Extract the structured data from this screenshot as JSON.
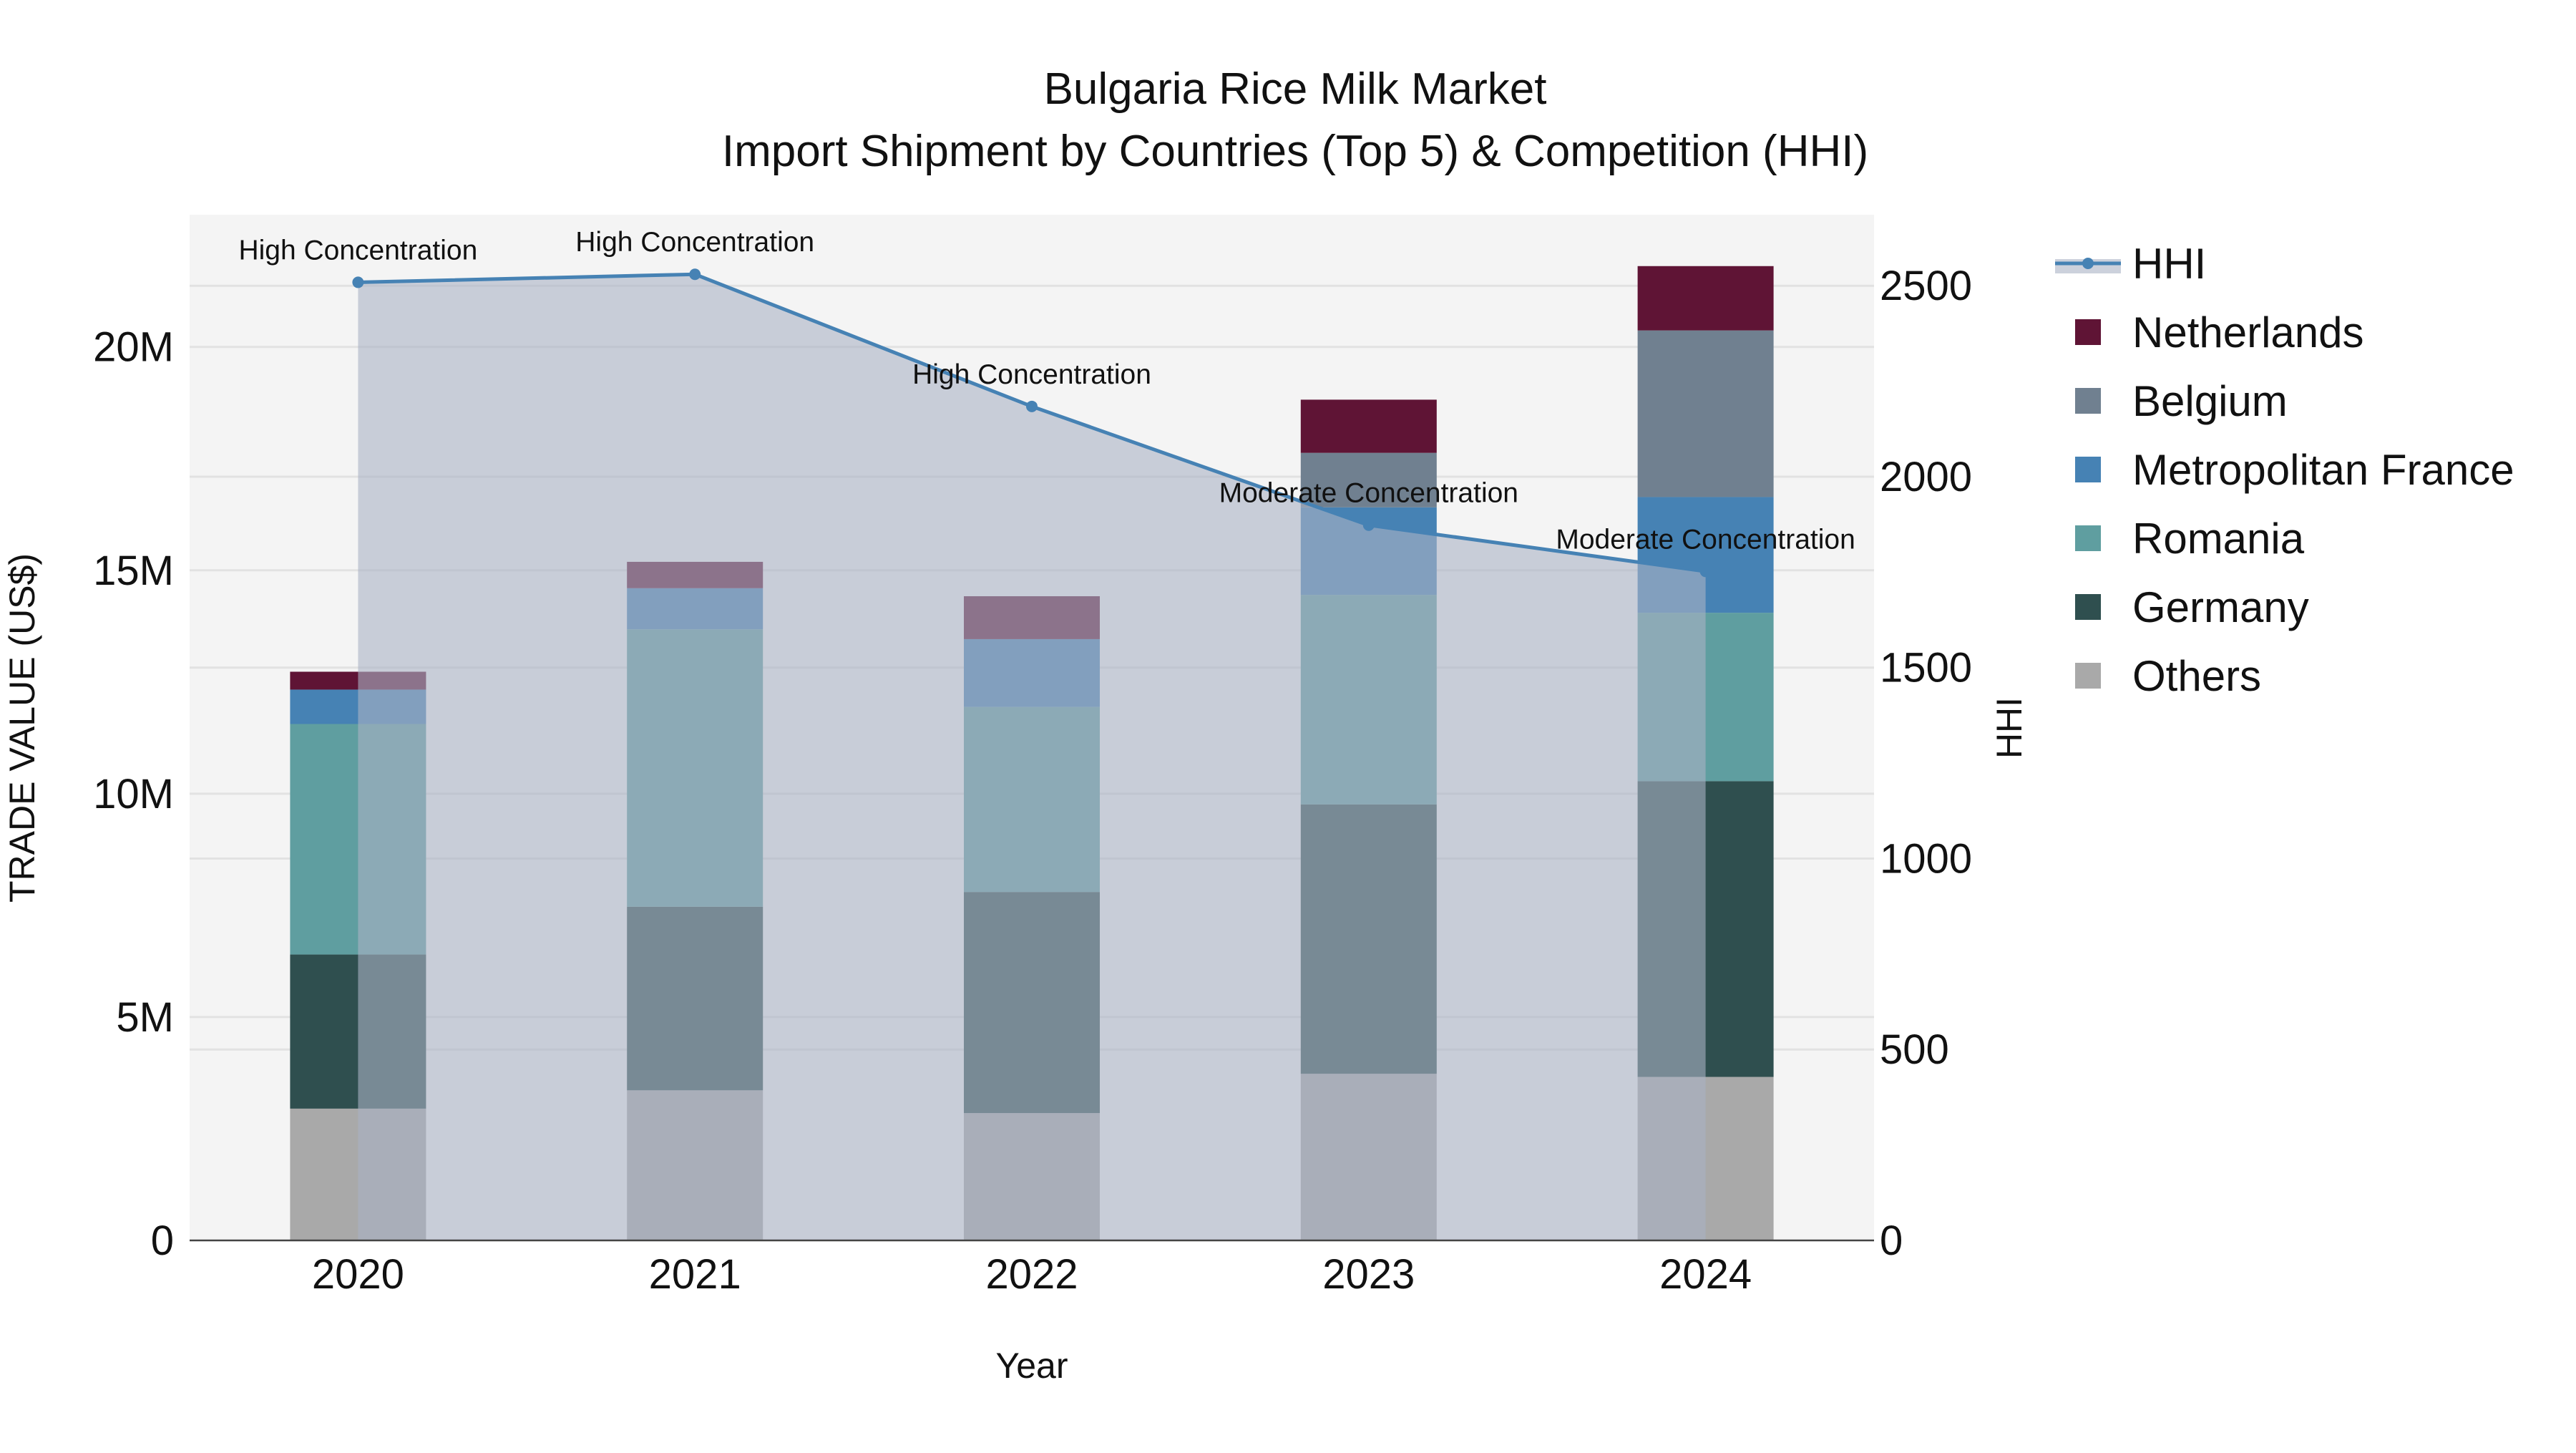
{
  "chart_data": {
    "type": "bar",
    "title": "Bulgaria Rice Milk Market",
    "subtitle": "Import Shipment by Countries (Top 5) & Competition (HHI)",
    "xlabel": "Year",
    "ylabel": "TRADE VALUE (US$)",
    "y2label": "HHI",
    "categories": [
      "2020",
      "2021",
      "2022",
      "2023",
      "2024"
    ],
    "ylim": [
      0,
      22960000
    ],
    "y2lim": [
      0,
      2686
    ],
    "yticks": [
      {
        "v": 0,
        "label": "0"
      },
      {
        "v": 5000000,
        "label": "5M"
      },
      {
        "v": 10000000,
        "label": "10M"
      },
      {
        "v": 15000000,
        "label": "15M"
      },
      {
        "v": 20000000,
        "label": "20M"
      }
    ],
    "y2ticks": [
      {
        "v": 0,
        "label": "0"
      },
      {
        "v": 500,
        "label": "500"
      },
      {
        "v": 1000,
        "label": "1000"
      },
      {
        "v": 1500,
        "label": "1500"
      },
      {
        "v": 2000,
        "label": "2000"
      },
      {
        "v": 2500,
        "label": "2500"
      }
    ],
    "grid": true,
    "legend_position": "right",
    "series": [
      {
        "name": "Others",
        "color": "#a9a9a9",
        "values": [
          2950000,
          3360000,
          2850000,
          3730000,
          3660000
        ]
      },
      {
        "name": "Germany",
        "color": "#2f4f4f",
        "values": [
          3450000,
          4110000,
          4950000,
          6030000,
          6620000
        ]
      },
      {
        "name": "Romania",
        "color": "#5f9ea0",
        "values": [
          5160000,
          6210000,
          4140000,
          4690000,
          3770000
        ]
      },
      {
        "name": "Metropolitan France",
        "color": "#4682b4",
        "values": [
          770000,
          920000,
          1520000,
          1960000,
          2590000
        ]
      },
      {
        "name": "Belgium",
        "color": "#708090",
        "values": [
          0,
          0,
          0,
          1220000,
          3730000
        ]
      },
      {
        "name": "Netherlands",
        "color": "#5f1435",
        "values": [
          400000,
          590000,
          960000,
          1190000,
          1440000
        ]
      }
    ],
    "hhi": {
      "name": "HHI",
      "color": "#4682b4",
      "values": [
        2509,
        2530,
        2184,
        1873,
        1752
      ],
      "annotations": [
        "High Concentration",
        "High Concentration",
        "High Concentration",
        "Moderate Concentration",
        "Moderate Concentration"
      ]
    },
    "legend_order": [
      "HHI",
      "Netherlands",
      "Belgium",
      "Metropolitan France",
      "Romania",
      "Germany",
      "Others"
    ]
  }
}
